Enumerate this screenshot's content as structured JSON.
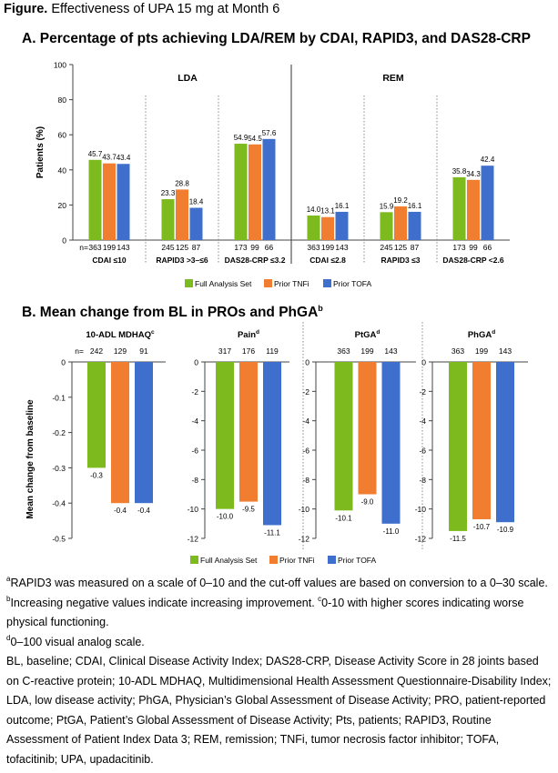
{
  "figure": {
    "label": "Figure.",
    "title": "Effectiveness of UPA 15 mg at Month 6"
  },
  "colors": {
    "full": "#7dba1e",
    "tnfi": "#f07d30",
    "tofa": "#3f6fcc"
  },
  "legend": [
    "Full Analysis Set",
    "Prior TNFi",
    "Prior TOFA"
  ],
  "sectionA": {
    "title": "A. Percentage of pts achieving LDA/REM by CDAI, RAPID3, and DAS28-CRP"
  },
  "sectionB": {
    "title": "B. Mean change from BL in PROs and PhGA",
    "title_sup": "b"
  },
  "chart_data": [
    {
      "type": "bar",
      "title": "Percentage of pts achieving LDA/REM by CDAI, RAPID3, and DAS28-CRP",
      "ylabel": "Patients (%)",
      "ylim": [
        0,
        100
      ],
      "yticks": [
        "0",
        "20",
        "40",
        "60",
        "80",
        "100"
      ],
      "panels": [
        "LDA",
        "REM"
      ],
      "n_prefix": "n=",
      "categories": [
        "CDAI ≤10",
        "RAPID3 >3–≤6",
        "DAS28-CRP ≤3.2",
        "CDAI ≤2.8",
        "RAPID3 ≤3",
        "DAS28-CRP <2.6"
      ],
      "series": [
        {
          "name": "Full Analysis Set",
          "values": [
            45.7,
            23.3,
            54.9,
            14.0,
            15.9,
            35.8
          ],
          "labels": [
            "45.7",
            "23.3",
            "54.9",
            "14.0",
            "15.9",
            "35.8"
          ],
          "n": [
            "363",
            "245",
            "173",
            "363",
            "245",
            "173"
          ]
        },
        {
          "name": "Prior TNFi",
          "values": [
            43.7,
            28.8,
            54.5,
            13.1,
            19.2,
            34.3
          ],
          "labels": [
            "43.7",
            "28.8",
            "54.5",
            "13.1",
            "19.2",
            "34.3"
          ],
          "n": [
            "199",
            "125",
            "99",
            "199",
            "125",
            "99"
          ]
        },
        {
          "name": "Prior TOFA",
          "values": [
            43.4,
            18.4,
            57.6,
            16.1,
            16.1,
            42.4
          ],
          "labels": [
            "43.4",
            "18.4",
            "57.6",
            "16.1",
            "16.1",
            "42.4"
          ],
          "n": [
            "143",
            "87",
            "66",
            "143",
            "87",
            "66"
          ]
        }
      ]
    },
    {
      "type": "bar",
      "title": "Mean change from BL in PROs and PhGA",
      "ylabel": "Mean change from baseline",
      "n_prefix": "n=",
      "panels": [
        {
          "label": "10-ADL MDHAQ",
          "sup": "c",
          "ylim": [
            -0.5,
            0
          ],
          "yticks": [
            "0",
            "-0.1",
            "-0.2",
            "-0.3",
            "-0.4",
            "-0.5"
          ],
          "n": [
            "242",
            "129",
            "91"
          ],
          "values": [
            -0.3,
            -0.4,
            -0.4
          ],
          "labels": [
            "-0.3",
            "-0.4",
            "-0.4"
          ]
        },
        {
          "label": "Pain",
          "sup": "d",
          "ylim": [
            -12,
            0
          ],
          "yticks": [
            "0",
            "-2",
            "-4",
            "-6",
            "-8",
            "-10",
            "-12"
          ],
          "n": [
            "317",
            "176",
            "119"
          ],
          "values": [
            -10.0,
            -9.5,
            -11.1
          ],
          "labels": [
            "-10.0",
            "-9.5",
            "-11.1"
          ]
        },
        {
          "label": "PtGA",
          "sup": "d",
          "ylim": [
            -12,
            0
          ],
          "n": [
            "363",
            "199",
            "143"
          ],
          "values": [
            -10.1,
            -9.0,
            -11.0
          ],
          "labels": [
            "-10.1",
            "-9.0",
            "-11.0"
          ]
        },
        {
          "label": "PhGA",
          "sup": "d",
          "ylim": [
            -12,
            0
          ],
          "n": [
            "363",
            "199",
            "143"
          ],
          "values": [
            -11.5,
            -10.7,
            -10.9
          ],
          "labels": [
            "-11.5",
            "-10.7",
            "-10.9"
          ]
        }
      ]
    }
  ],
  "footnotes": {
    "a_sup": "a",
    "a_text": "RAPID3 was measured on a scale of 0–10 and the cut-off values are based on conversion to a 0–30 scale.",
    "b_sup": "b",
    "b_text": "Increasing negative values indicate increasing improvement.",
    "c_sup": "c",
    "c_text": "0-10 with higher scores indicating worse physical functioning.",
    "d_sup": "d",
    "d_text": "0–100 visual analog scale.",
    "abbreviations": "BL, baseline; CDAI, Clinical Disease Activity Index; DAS28-CRP, Disease Activity Score in 28 joints based on C-reactive protein; 10-ADL MDHAQ, Multidimensional Health Assessment Questionnaire-Disability Index; LDA, low disease activity; PhGA, Physician’s Global Assessment of Disease Activity; PRO, patient-reported outcome; PtGA, Patient’s Global Assessment of Disease Activity; Pts, patients; RAPID3, Routine Assessment of Patient Index Data 3; REM, remission; TNFi, tumor necrosis factor inhibitor; TOFA, tofacitinib; UPA, upadacitinib."
  }
}
